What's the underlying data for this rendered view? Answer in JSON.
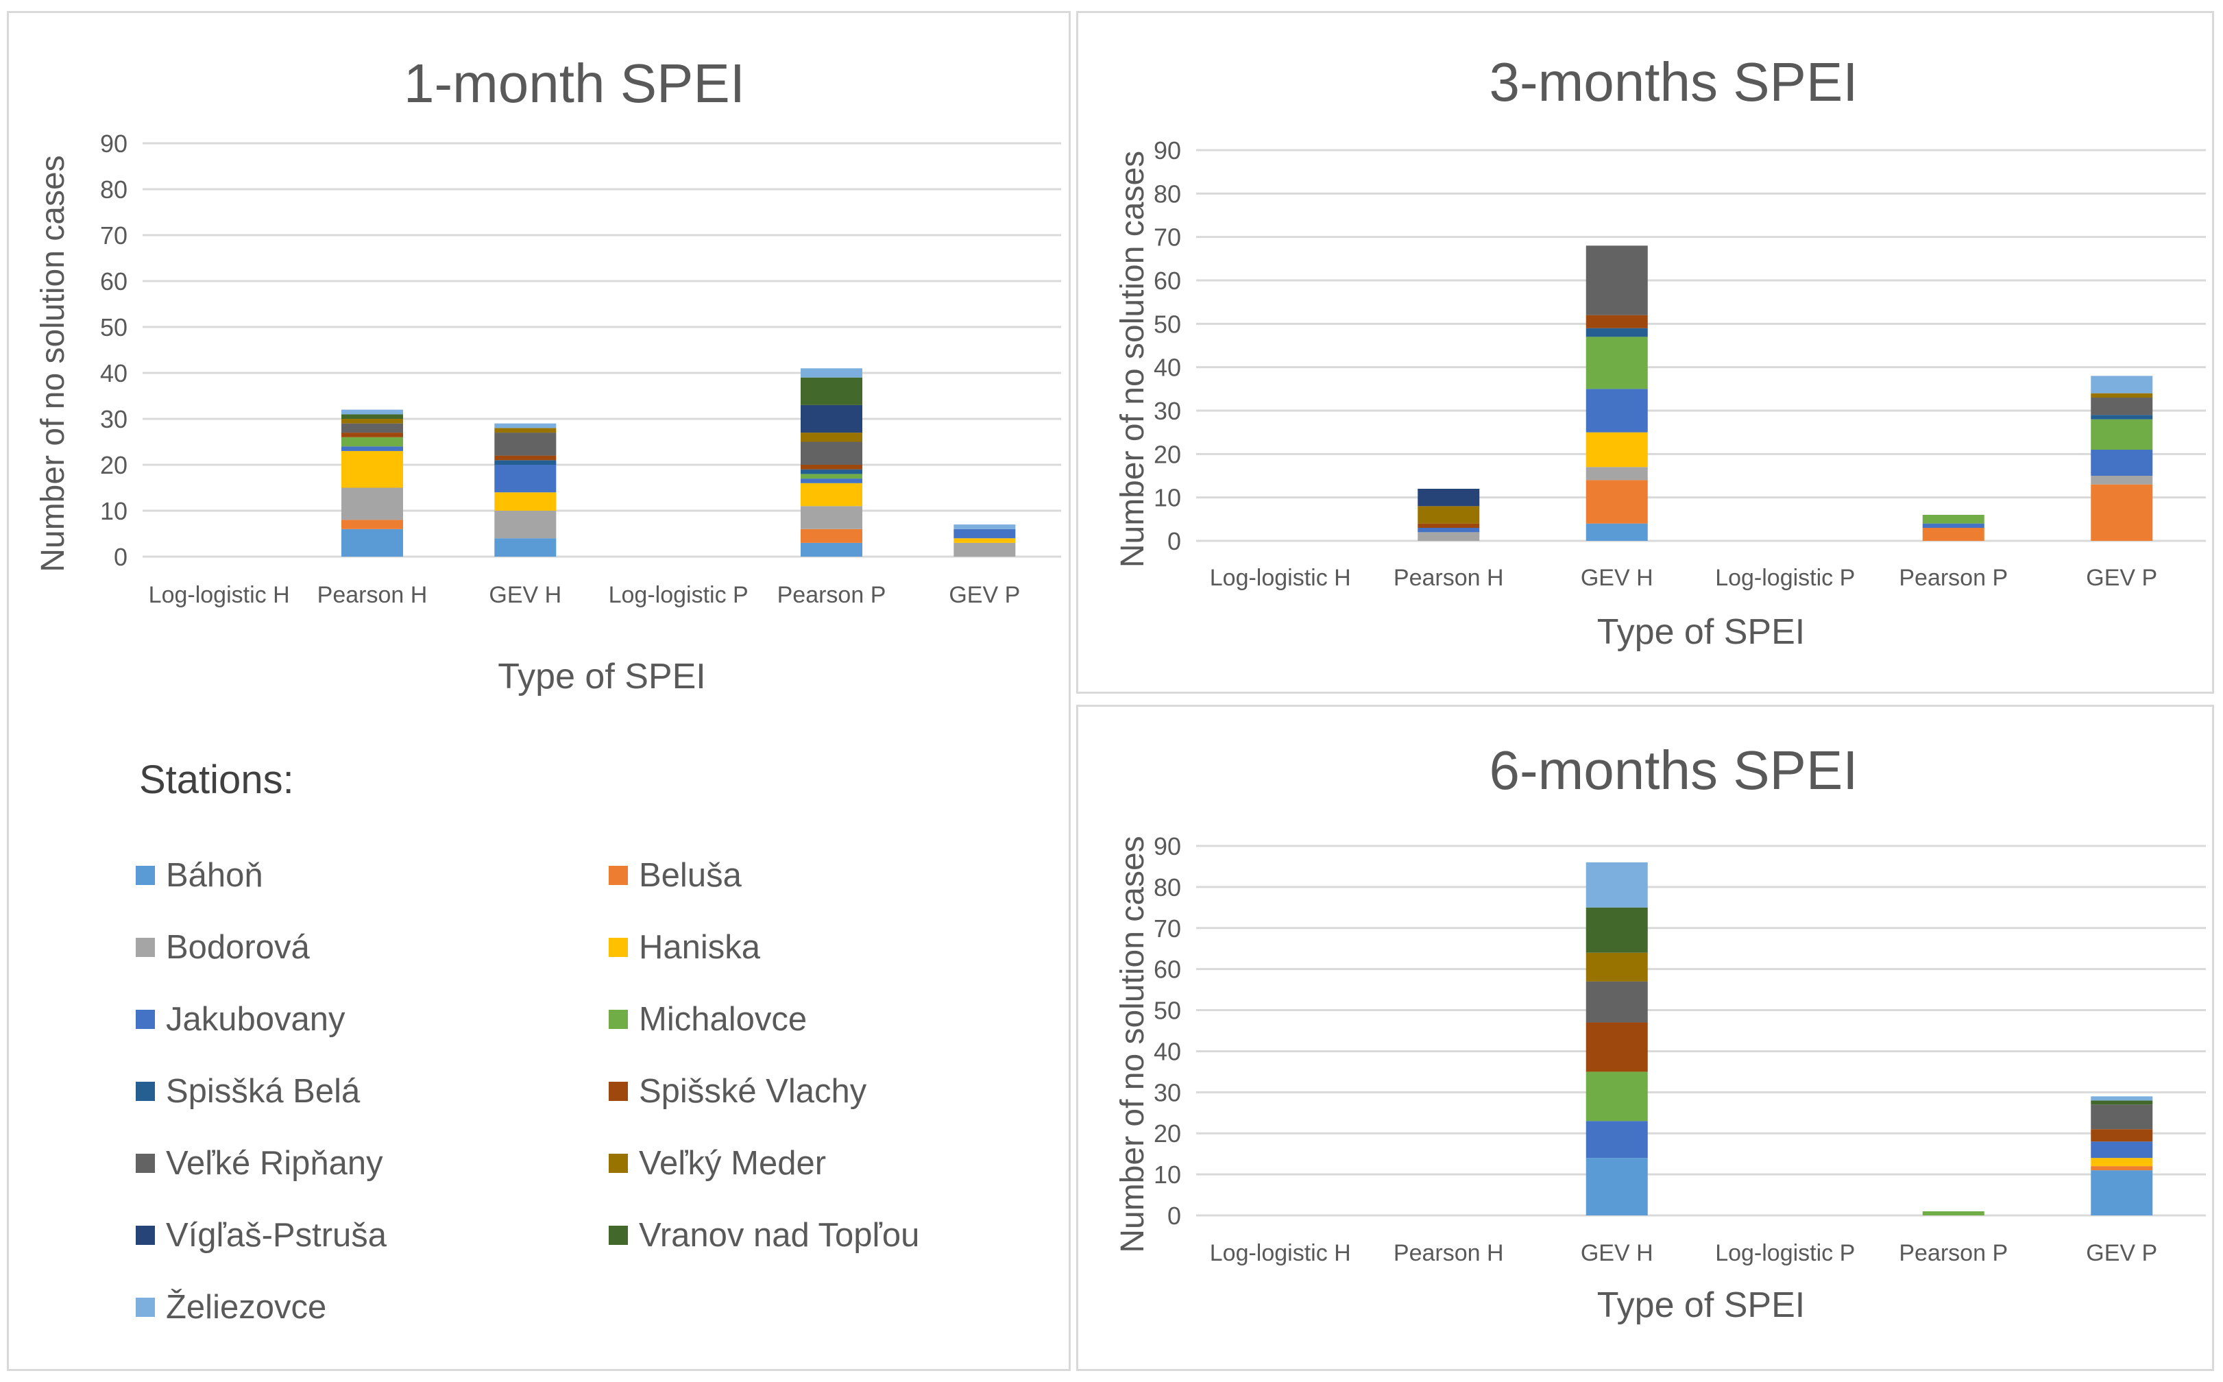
{
  "stations_title": "Stations:",
  "stations": [
    {
      "name": "Báhoň",
      "color": "#5b9bd5"
    },
    {
      "name": "Beluša",
      "color": "#ed7d31"
    },
    {
      "name": "Bodorová",
      "color": "#a5a5a5"
    },
    {
      "name": "Haniska",
      "color": "#ffc000"
    },
    {
      "name": "Jakubovany",
      "color": "#4472c4"
    },
    {
      "name": "Michalovce",
      "color": "#70ad47"
    },
    {
      "name": "Spisšká Belá",
      "color": "#255e91"
    },
    {
      "name": "Spišské Vlachy",
      "color": "#9e480e"
    },
    {
      "name": "Veľké Ripňany",
      "color": "#636363"
    },
    {
      "name": "Veľký Meder",
      "color": "#997300"
    },
    {
      "name": "Vígľaš-Pstruša",
      "color": "#264478"
    },
    {
      "name": "Vranov nad Topľou",
      "color": "#43682b"
    },
    {
      "name": "Želiezovce",
      "color": "#7cafdd"
    }
  ],
  "chart_data": [
    {
      "id": "spei1",
      "type": "stacked-bar",
      "title": "1-month SPEI",
      "xlabel": "Type of SPEI",
      "ylabel": "Number of no solution cases",
      "ylim": [
        0,
        90
      ],
      "yticks": [
        "0",
        "10",
        "20",
        "30",
        "40",
        "50",
        "60",
        "70",
        "80",
        "90"
      ],
      "grid": true,
      "categories": [
        "Log-logistic H",
        "Pearson H",
        "GEV H",
        "Log-logistic P",
        "Pearson P",
        "GEV P"
      ],
      "series": [
        {
          "name": "Báhoň",
          "values": [
            0,
            6,
            4,
            0,
            3,
            0
          ]
        },
        {
          "name": "Beluša",
          "values": [
            0,
            2,
            0,
            0,
            3,
            0
          ]
        },
        {
          "name": "Bodorová",
          "values": [
            0,
            7,
            6,
            0,
            5,
            3
          ]
        },
        {
          "name": "Haniska",
          "values": [
            0,
            8,
            4,
            0,
            5,
            1
          ]
        },
        {
          "name": "Jakubovany",
          "values": [
            0,
            1,
            6,
            0,
            1,
            2
          ]
        },
        {
          "name": "Michalovce",
          "values": [
            0,
            2,
            0,
            0,
            1,
            0
          ]
        },
        {
          "name": "Spisšká Belá",
          "values": [
            0,
            0,
            1,
            0,
            1,
            0
          ]
        },
        {
          "name": "Spišské Vlachy",
          "values": [
            0,
            1,
            1,
            0,
            1,
            0
          ]
        },
        {
          "name": "Veľké Ripňany",
          "values": [
            0,
            2,
            5,
            0,
            5,
            0
          ]
        },
        {
          "name": "Veľký Meder",
          "values": [
            0,
            1,
            1,
            0,
            2,
            0
          ]
        },
        {
          "name": "Vígľaš-Pstruša",
          "values": [
            0,
            0,
            0,
            0,
            6,
            0
          ]
        },
        {
          "name": "Vranov nad Topľou",
          "values": [
            0,
            1,
            0,
            0,
            6,
            0
          ]
        },
        {
          "name": "Želiezovce",
          "values": [
            0,
            1,
            1,
            0,
            2,
            1
          ]
        }
      ]
    },
    {
      "id": "spei3",
      "type": "stacked-bar",
      "title": "3-months SPEI",
      "xlabel": "Type of SPEI",
      "ylabel": "Number of no solution cases",
      "ylim": [
        0,
        90
      ],
      "yticks": [
        "0",
        "10",
        "20",
        "30",
        "40",
        "50",
        "60",
        "70",
        "80",
        "90"
      ],
      "grid": true,
      "categories": [
        "Log-logistic H",
        "Pearson H",
        "GEV H",
        "Log-logistic P",
        "Pearson P",
        "GEV P"
      ],
      "series": [
        {
          "name": "Báhoň",
          "values": [
            0,
            0,
            4,
            0,
            0,
            0
          ]
        },
        {
          "name": "Beluša",
          "values": [
            0,
            0,
            10,
            0,
            3,
            13
          ]
        },
        {
          "name": "Bodorová",
          "values": [
            0,
            2,
            3,
            0,
            0,
            2
          ]
        },
        {
          "name": "Haniska",
          "values": [
            0,
            0,
            8,
            0,
            0,
            0
          ]
        },
        {
          "name": "Jakubovany",
          "values": [
            0,
            1,
            10,
            0,
            1,
            6
          ]
        },
        {
          "name": "Michalovce",
          "values": [
            0,
            0,
            12,
            0,
            2,
            7
          ]
        },
        {
          "name": "Spisšká Belá",
          "values": [
            0,
            0,
            2,
            0,
            0,
            1
          ]
        },
        {
          "name": "Spišské Vlachy",
          "values": [
            0,
            1,
            3,
            0,
            0,
            0
          ]
        },
        {
          "name": "Veľké Ripňany",
          "values": [
            0,
            0,
            16,
            0,
            0,
            4
          ]
        },
        {
          "name": "Veľký Meder",
          "values": [
            0,
            4,
            0,
            0,
            0,
            1
          ]
        },
        {
          "name": "Vígľaš-Pstruša",
          "values": [
            0,
            4,
            0,
            0,
            0,
            0
          ]
        },
        {
          "name": "Vranov nad Topľou",
          "values": [
            0,
            0,
            0,
            0,
            0,
            0
          ]
        },
        {
          "name": "Želiezovce",
          "values": [
            0,
            0,
            0,
            0,
            0,
            4
          ]
        }
      ]
    },
    {
      "id": "spei6",
      "type": "stacked-bar",
      "title": "6-months SPEI",
      "xlabel": "Type of SPEI",
      "ylabel": "Number of no solution cases",
      "ylim": [
        0,
        90
      ],
      "yticks": [
        "0",
        "10",
        "20",
        "30",
        "40",
        "50",
        "60",
        "70",
        "80",
        "90"
      ],
      "grid": true,
      "categories": [
        "Log-logistic H",
        "Pearson H",
        "GEV H",
        "Log-logistic P",
        "Pearson P",
        "GEV P"
      ],
      "series": [
        {
          "name": "Báhoň",
          "values": [
            0,
            0,
            14,
            0,
            0,
            11
          ]
        },
        {
          "name": "Beluša",
          "values": [
            0,
            0,
            0,
            0,
            0,
            1
          ]
        },
        {
          "name": "Bodorová",
          "values": [
            0,
            0,
            0,
            0,
            0,
            0
          ]
        },
        {
          "name": "Haniska",
          "values": [
            0,
            0,
            0,
            0,
            0,
            2
          ]
        },
        {
          "name": "Jakubovany",
          "values": [
            0,
            0,
            9,
            0,
            0,
            4
          ]
        },
        {
          "name": "Michalovce",
          "values": [
            0,
            0,
            12,
            0,
            1,
            0
          ]
        },
        {
          "name": "Spisšká Belá",
          "values": [
            0,
            0,
            0,
            0,
            0,
            0
          ]
        },
        {
          "name": "Spišské Vlachy",
          "values": [
            0,
            0,
            12,
            0,
            0,
            3
          ]
        },
        {
          "name": "Veľké Ripňany",
          "values": [
            0,
            0,
            10,
            0,
            0,
            6
          ]
        },
        {
          "name": "Veľký Meder",
          "values": [
            0,
            0,
            7,
            0,
            0,
            0
          ]
        },
        {
          "name": "Vígľaš-Pstruša",
          "values": [
            0,
            0,
            0,
            0,
            0,
            0
          ]
        },
        {
          "name": "Vranov nad Topľou",
          "values": [
            0,
            0,
            11,
            0,
            0,
            1
          ]
        },
        {
          "name": "Želiezovce",
          "values": [
            0,
            0,
            11,
            0,
            0,
            1
          ]
        }
      ]
    }
  ]
}
